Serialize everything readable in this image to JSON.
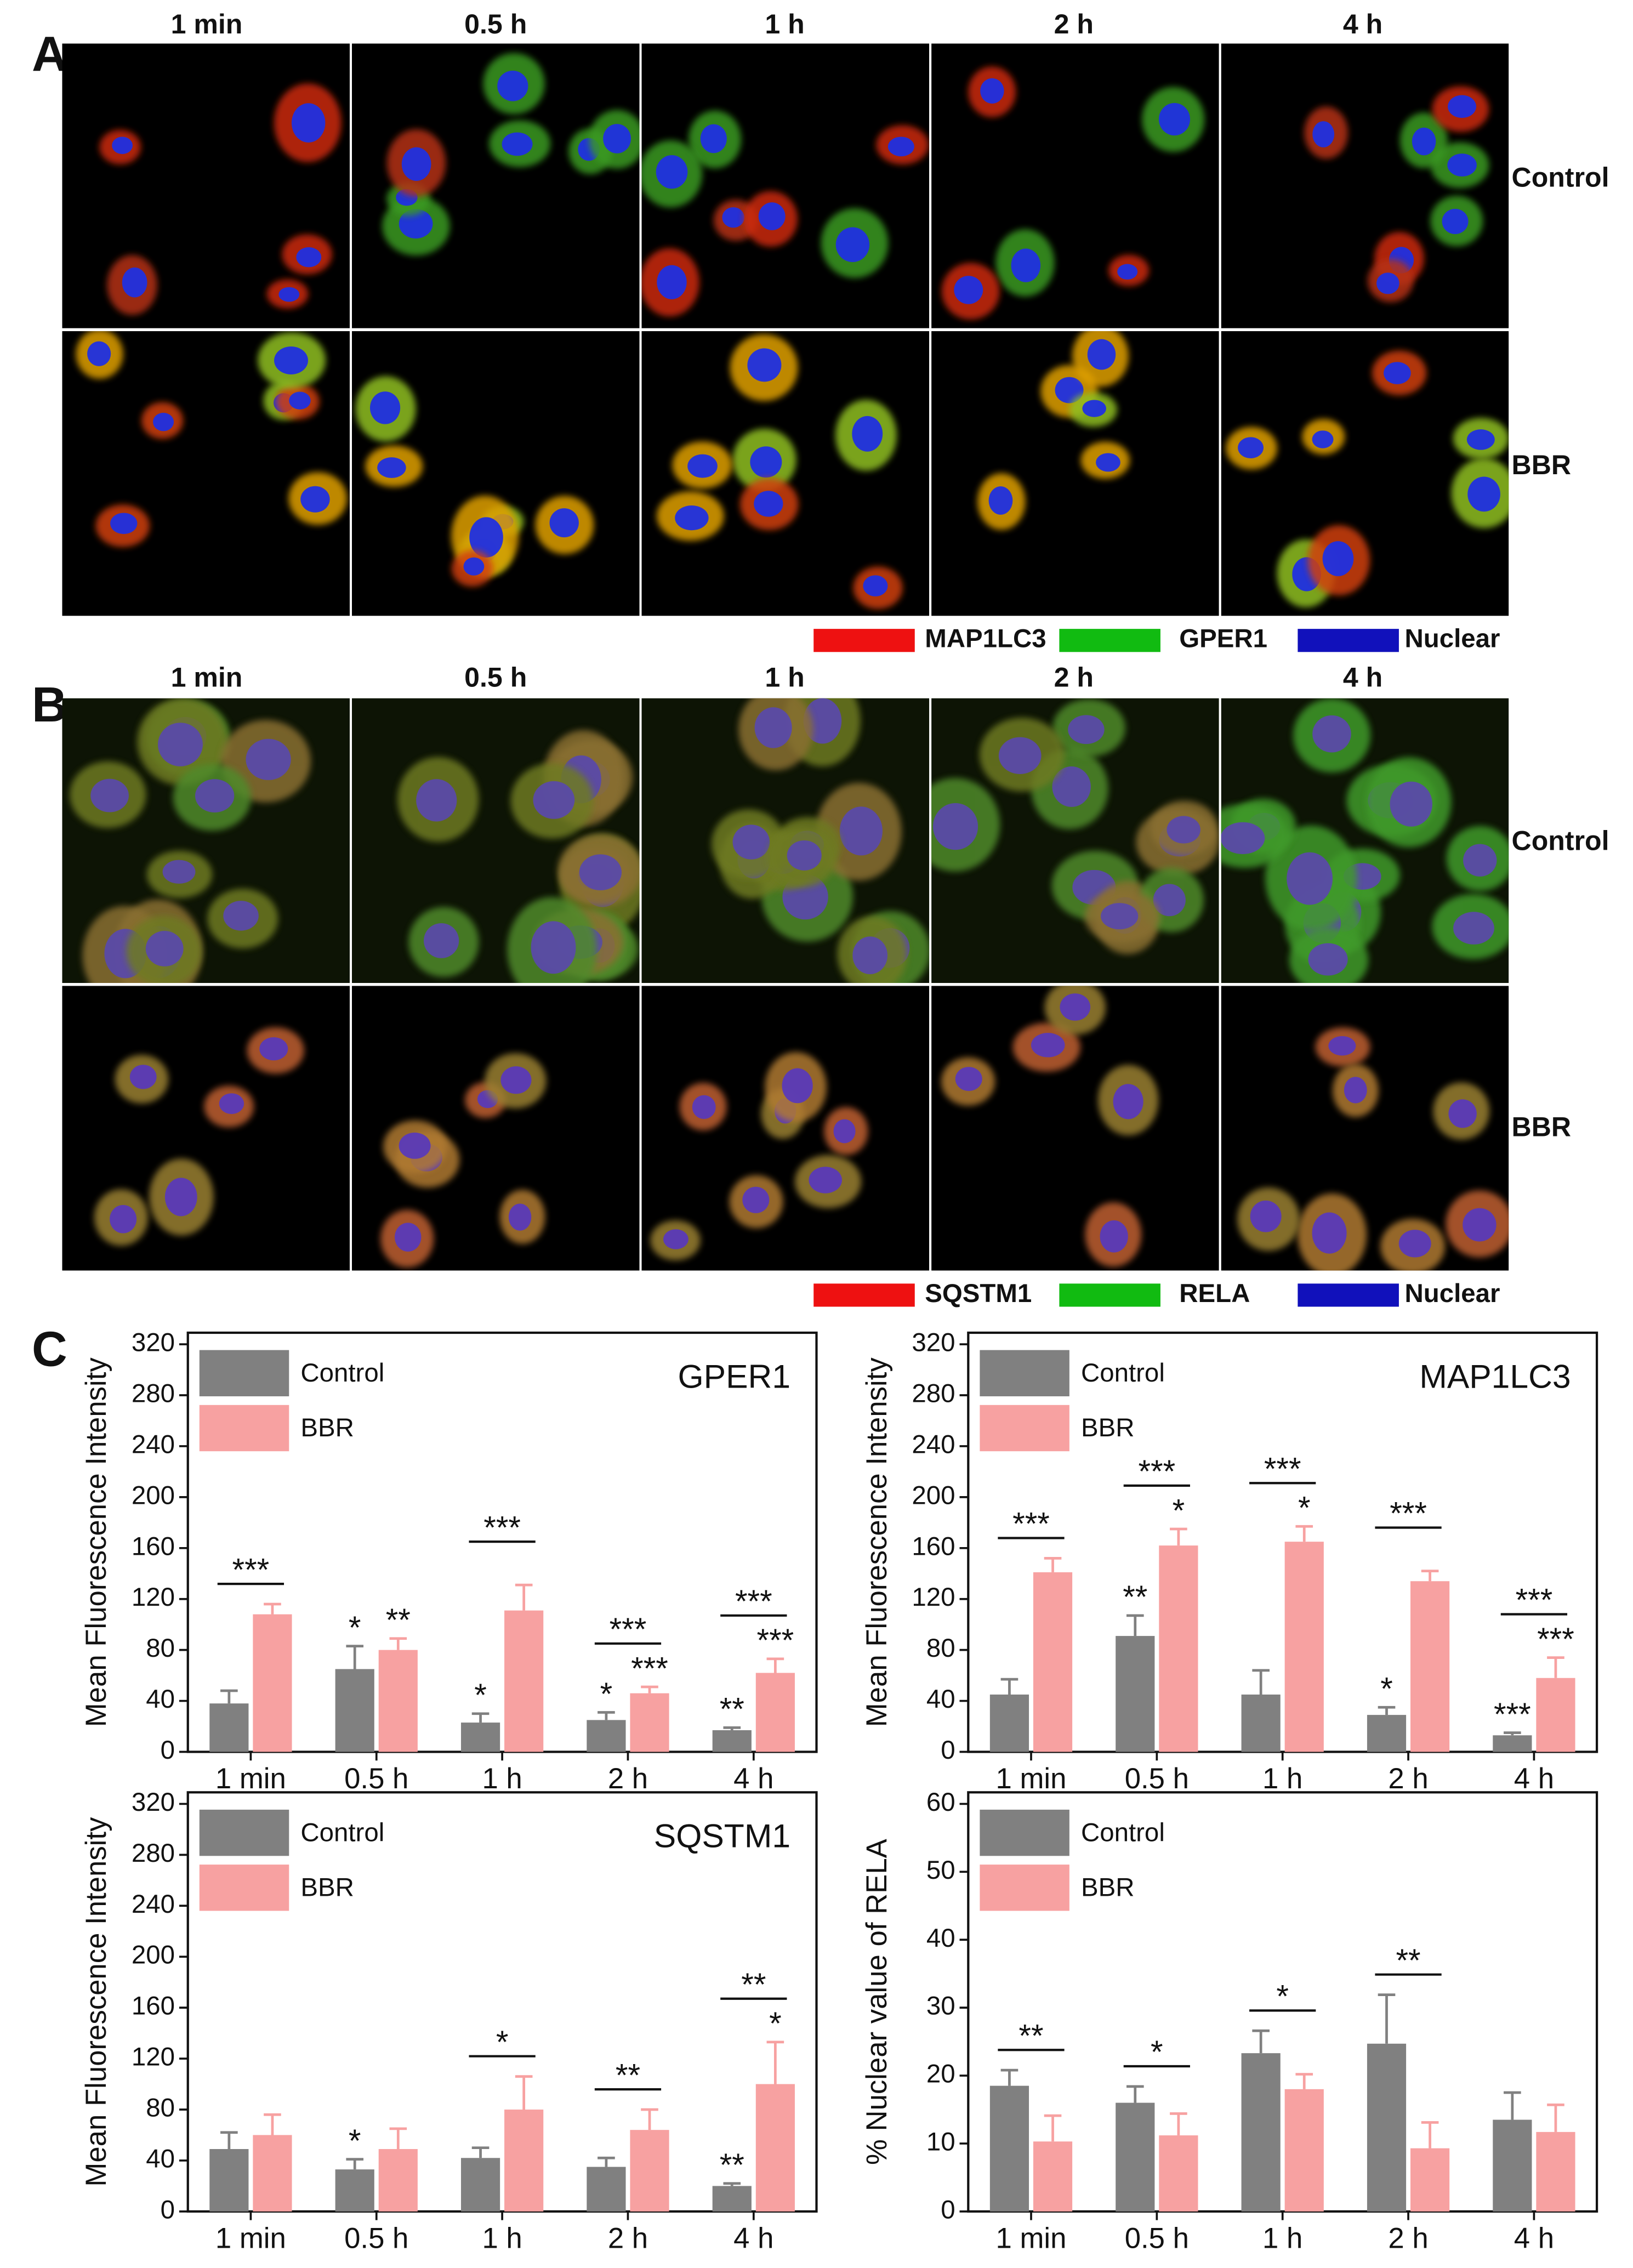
{
  "panel_a": {
    "label": "A",
    "columns": [
      "1 min",
      "0.5 h",
      "1 h",
      "2 h",
      "4 h"
    ],
    "rows": [
      "Control",
      "BBR"
    ],
    "legend": [
      {
        "name": "MAP1LC3",
        "color": "#ee1111"
      },
      {
        "name": "GPER1",
        "color": "#11bb11"
      },
      {
        "name": "Nuclear",
        "color": "#1111bb"
      }
    ]
  },
  "panel_b": {
    "label": "B",
    "columns": [
      "1 min",
      "0.5 h",
      "1 h",
      "2 h",
      "4 h"
    ],
    "rows": [
      "Control",
      "BBR"
    ],
    "legend": [
      {
        "name": "SQSTM1",
        "color": "#ee1111"
      },
      {
        "name": "RELA",
        "color": "#11bb11"
      },
      {
        "name": "Nuclear",
        "color": "#1111bb"
      }
    ]
  },
  "panel_c": {
    "label": "C"
  },
  "chart_data": [
    {
      "type": "bar",
      "title": "GPER1",
      "y_label": "Mean Fluorescence Intensity",
      "categories": [
        "1 min",
        "0.5 h",
        "1 h",
        "2 h",
        "4 h"
      ],
      "ylim": [
        0,
        320
      ],
      "yticks": [
        0,
        40,
        80,
        120,
        160,
        200,
        240,
        280,
        320
      ],
      "series": [
        {
          "name": "Control",
          "color": "#808080",
          "values": [
            38,
            65,
            23,
            25,
            17
          ],
          "errors": [
            10,
            18,
            7,
            6,
            2
          ],
          "significance": [
            null,
            "*",
            "*",
            "*",
            "**"
          ],
          "significance_color": "#8a8a8a"
        },
        {
          "name": "BBR",
          "color": "#f7a1a1",
          "values": [
            108,
            80,
            111,
            46,
            62
          ],
          "errors": [
            8,
            9,
            20,
            5,
            11
          ],
          "significance": [
            null,
            "**",
            null,
            "***",
            "***"
          ],
          "significance_color": "#f28080"
        }
      ],
      "comparisons": [
        "***",
        null,
        "***",
        "***",
        "***"
      ]
    },
    {
      "type": "bar",
      "title": "MAP1LC3",
      "y_label": "Mean Fluorescence Intensity",
      "categories": [
        "1 min",
        "0.5 h",
        "1 h",
        "2 h",
        "4 h"
      ],
      "ylim": [
        0,
        320
      ],
      "yticks": [
        0,
        40,
        80,
        120,
        160,
        200,
        240,
        280,
        320
      ],
      "series": [
        {
          "name": "Control",
          "color": "#808080",
          "values": [
            45,
            91,
            45,
            29,
            13
          ],
          "errors": [
            12,
            16,
            19,
            6,
            2
          ],
          "significance": [
            null,
            "**",
            null,
            "*",
            "***"
          ],
          "significance_color": "#8a8a8a"
        },
        {
          "name": "BBR",
          "color": "#f7a1a1",
          "values": [
            141,
            162,
            165,
            134,
            58
          ],
          "errors": [
            11,
            13,
            12,
            8,
            16
          ],
          "significance": [
            null,
            "*",
            "*",
            null,
            "***"
          ],
          "significance_color": "#f28080"
        }
      ],
      "comparisons": [
        "***",
        "***",
        "***",
        "***",
        "***"
      ]
    },
    {
      "type": "bar",
      "title": "SQSTM1",
      "y_label": "Mean Fluorescence Intensity",
      "categories": [
        "1 min",
        "0.5 h",
        "1 h",
        "2 h",
        "4 h"
      ],
      "ylim": [
        0,
        320
      ],
      "yticks": [
        0,
        40,
        80,
        120,
        160,
        200,
        240,
        280,
        320
      ],
      "series": [
        {
          "name": "Control",
          "color": "#808080",
          "values": [
            49,
            33,
            42,
            35,
            20
          ],
          "errors": [
            13,
            8,
            8,
            7,
            2
          ],
          "significance": [
            null,
            "*",
            null,
            null,
            "**"
          ],
          "significance_color": "#8a8a8a"
        },
        {
          "name": "BBR",
          "color": "#f7a1a1",
          "values": [
            60,
            49,
            80,
            64,
            100
          ],
          "errors": [
            16,
            16,
            26,
            16,
            33
          ],
          "significance": [
            null,
            null,
            null,
            null,
            "*"
          ],
          "significance_color": "#f28080"
        }
      ],
      "comparisons": [
        null,
        null,
        "*",
        "**",
        "**"
      ]
    },
    {
      "type": "bar",
      "y_label": "% Nuclear value of RELA",
      "categories": [
        "1 min",
        "0.5 h",
        "1 h",
        "2 h",
        "4 h"
      ],
      "ylim": [
        0,
        60
      ],
      "yticks": [
        0,
        10,
        20,
        30,
        40,
        50,
        60
      ],
      "series": [
        {
          "name": "Control",
          "color": "#808080",
          "values": [
            18.5,
            16,
            23.3,
            24.7,
            13.5
          ],
          "errors": [
            2.3,
            2.4,
            3.3,
            7.2,
            4
          ]
        },
        {
          "name": "BBR",
          "color": "#f7a1a1",
          "values": [
            10.3,
            11.2,
            18,
            9.3,
            11.7
          ],
          "errors": [
            3.8,
            3.2,
            2.2,
            3.8,
            4
          ]
        }
      ],
      "comparisons": [
        "**",
        "*",
        "*",
        "**",
        null
      ]
    }
  ]
}
